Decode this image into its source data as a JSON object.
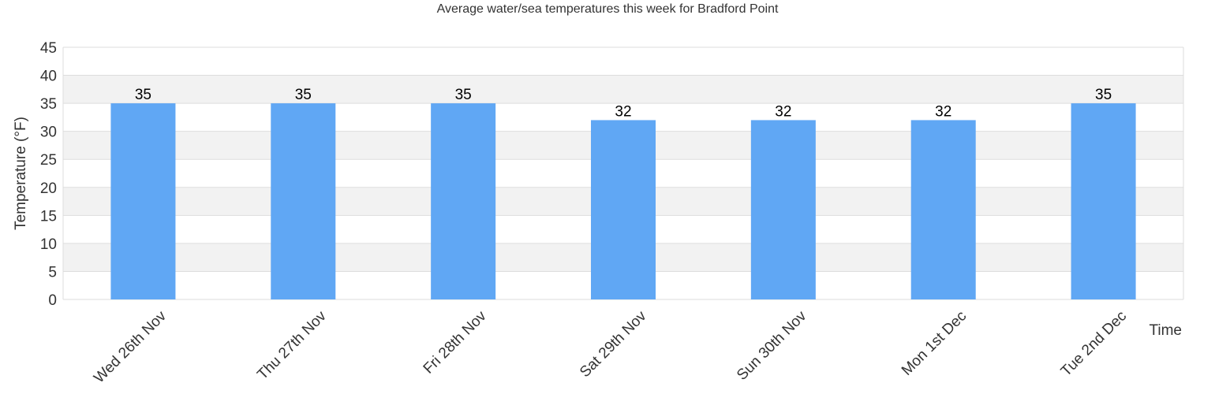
{
  "chart_data": {
    "type": "bar",
    "title": "Average water/sea temperatures this week for Bradford Point",
    "xlabel": "Time",
    "ylabel": "Temperature (°F)",
    "categories": [
      "Wed 26th Nov",
      "Thu 27th Nov",
      "Fri 28th Nov",
      "Sat 29th Nov",
      "Sun 30th Nov",
      "Mon 1st Dec",
      "Tue 2nd Dec"
    ],
    "values": [
      35,
      35,
      35,
      32,
      32,
      32,
      35
    ],
    "ylim": [
      0,
      45
    ],
    "yticks": [
      0,
      5,
      10,
      15,
      20,
      25,
      30,
      35,
      40,
      45
    ],
    "grid": true,
    "colors": {
      "bar": "#60a7f4",
      "band": "#f2f2f2",
      "gridline": "#dddddd"
    }
  }
}
